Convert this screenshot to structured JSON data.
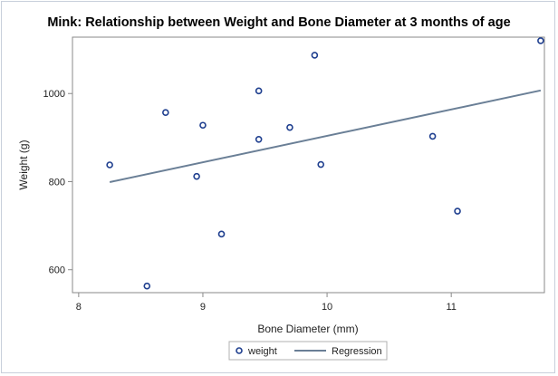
{
  "chart_data": {
    "type": "scatter",
    "title": "Mink: Relationship between Weight and Bone Diameter at 3 months of age",
    "xlabel": "Bone Diameter (mm)",
    "ylabel": "Weight (g)",
    "xlim": [
      7.95,
      11.75
    ],
    "ylim": [
      548,
      1128
    ],
    "xticks": [
      8,
      9,
      10,
      11
    ],
    "yticks": [
      600,
      800,
      1000
    ],
    "grid": false,
    "legend_position": "bottom",
    "series": [
      {
        "name": "weight",
        "kind": "scatter",
        "color": "#1f3f8f",
        "x": [
          8.25,
          8.55,
          8.7,
          8.95,
          9.0,
          9.15,
          9.45,
          9.45,
          9.7,
          9.9,
          9.95,
          10.85,
          11.05,
          11.72
        ],
        "y": [
          838,
          563,
          957,
          812,
          928,
          681,
          1006,
          896,
          923,
          1087,
          839,
          903,
          733,
          1120
        ]
      },
      {
        "name": "Regression",
        "kind": "line",
        "color": "#6a7f96",
        "x": [
          8.25,
          11.72
        ],
        "y": [
          799,
          1007
        ]
      }
    ]
  }
}
